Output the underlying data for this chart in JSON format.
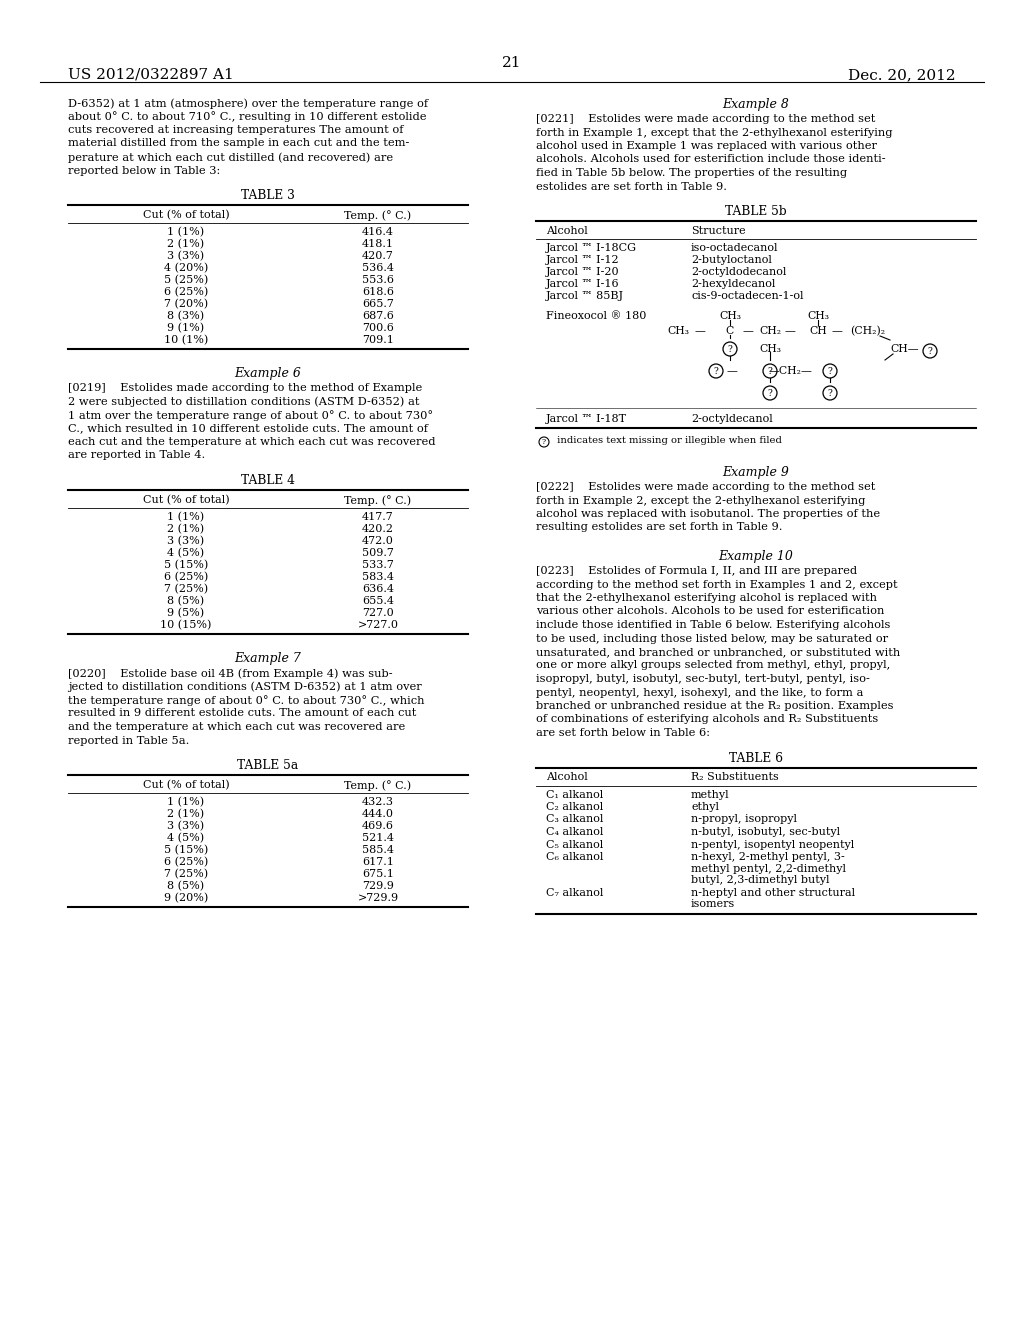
{
  "bg_color": "#ffffff",
  "header_left": "US 2012/0322897 A1",
  "header_right": "Dec. 20, 2012",
  "page_number": "21",
  "left_col": {
    "intro_text": "D-6352) at 1 atm (atmosphere) over the temperature range of\nabout 0° C. to about 710° C., resulting in 10 different estolide\ncuts recovered at increasing temperatures The amount of\nmaterial distilled from the sample in each cut and the tem-\nperature at which each cut distilled (and recovered) are\nreported below in Table 3:",
    "table3_title": "TABLE 3",
    "table3_col1": "Cut (% of total)",
    "table3_col2": "Temp. (° C.)",
    "table3_rows": [
      [
        "1 (1%)",
        "416.4"
      ],
      [
        "2 (1%)",
        "418.1"
      ],
      [
        "3 (3%)",
        "420.7"
      ],
      [
        "4 (20%)",
        "536.4"
      ],
      [
        "5 (25%)",
        "553.6"
      ],
      [
        "6 (25%)",
        "618.6"
      ],
      [
        "7 (20%)",
        "665.7"
      ],
      [
        "8 (3%)",
        "687.6"
      ],
      [
        "9 (1%)",
        "700.6"
      ],
      [
        "10 (1%)",
        "709.1"
      ]
    ],
    "ex6_title": "Example 6",
    "ex6_text": "[0219]    Estolides made according to the method of Example\n2 were subjected to distillation conditions (ASTM D-6352) at\n1 atm over the temperature range of about 0° C. to about 730°\nC., which resulted in 10 different estolide cuts. The amount of\neach cut and the temperature at which each cut was recovered\nare reported in Table 4.",
    "table4_title": "TABLE 4",
    "table4_col1": "Cut (% of total)",
    "table4_col2": "Temp. (° C.)",
    "table4_rows": [
      [
        "1 (1%)",
        "417.7"
      ],
      [
        "2 (1%)",
        "420.2"
      ],
      [
        "3 (3%)",
        "472.0"
      ],
      [
        "4 (5%)",
        "509.7"
      ],
      [
        "5 (15%)",
        "533.7"
      ],
      [
        "6 (25%)",
        "583.4"
      ],
      [
        "7 (25%)",
        "636.4"
      ],
      [
        "8 (5%)",
        "655.4"
      ],
      [
        "9 (5%)",
        "727.0"
      ],
      [
        "10 (15%)",
        ">727.0"
      ]
    ],
    "ex7_title": "Example 7",
    "ex7_text": "[0220]    Estolide base oil 4B (from Example 4) was sub-\njected to distillation conditions (ASTM D-6352) at 1 atm over\nthe temperature range of about 0° C. to about 730° C., which\nresulted in 9 different estolide cuts. The amount of each cut\nand the temperature at which each cut was recovered are\nreported in Table 5a.",
    "table5a_title": "TABLE 5a",
    "table5a_col1": "Cut (% of total)",
    "table5a_col2": "Temp. (° C.)",
    "table5a_rows": [
      [
        "1 (1%)",
        "432.3"
      ],
      [
        "2 (1%)",
        "444.0"
      ],
      [
        "3 (3%)",
        "469.6"
      ],
      [
        "4 (5%)",
        "521.4"
      ],
      [
        "5 (15%)",
        "585.4"
      ],
      [
        "6 (25%)",
        "617.1"
      ],
      [
        "7 (25%)",
        "675.1"
      ],
      [
        "8 (5%)",
        "729.9"
      ],
      [
        "9 (20%)",
        ">729.9"
      ]
    ]
  },
  "right_col": {
    "ex8_title": "Example 8",
    "ex8_text": "[0221]    Estolides were made according to the method set\nforth in Example 1, except that the 2-ethylhexanol esterifying\nalcohol used in Example 1 was replaced with various other\nalcohols. Alcohols used for esterifiction include those identi-\nfied in Table 5b below. The properties of the resulting\nestolides are set forth in Table 9.",
    "table5b_title": "TABLE 5b",
    "table5b_col1": "Alcohol",
    "table5b_col2": "Structure",
    "table5b_rows": [
      [
        "Jarcol ™ I-18CG",
        "iso-octadecanol"
      ],
      [
        "Jarcol ™ I-12",
        "2-butyloctanol"
      ],
      [
        "Jarcol ™ I-20",
        "2-octyldodecanol"
      ],
      [
        "Jarcol ™ I-16",
        "2-hexyldecanol"
      ],
      [
        "Jarcol ™ 85BJ",
        "cis-9-octadecen-1-ol"
      ]
    ],
    "fineoxocol_label": "Fineoxocol ® 180",
    "jarcol_i18t_label": "Jarcol ™ I-18T",
    "jarcol_i18t_struct": "2-octyldecanol",
    "footnote": "ⓘ indicates text missing or illegible when filed",
    "ex9_title": "Example 9",
    "ex9_text": "[0222]    Estolides were made according to the method set\nforth in Example 2, except the 2-ethylhexanol esterifying\nalcohol was replaced with isobutanol. The properties of the\nresulting estolides are set forth in Table 9.",
    "ex10_title": "Example 10",
    "ex10_text": "[0223]    Estolides of Formula I, II, and III are prepared\naccording to the method set forth in Examples 1 and 2, except\nthat the 2-ethylhexanol esterifying alcohol is replaced with\nvarious other alcohols. Alcohols to be used for esterification\ninclude those identified in Table 6 below. Esterifying alcohols\nto be used, including those listed below, may be saturated or\nunsaturated, and branched or unbranched, or substituted with\none or more alkyl groups selected from methyl, ethyl, propyl,\nisopropyl, butyl, isobutyl, sec-butyl, tert-butyl, pentyl, iso-\npentyl, neopentyl, hexyl, isohexyl, and the like, to form a\nbranched or unbranched residue at the R₂ position. Examples\nof combinations of esterifying alcohols and R₂ Substituents\nare set forth below in Table 6:",
    "table6_title": "TABLE 6",
    "table6_col1": "Alcohol",
    "table6_col2": "R₂ Substituents",
    "table6_rows": [
      [
        "C₁ alkanol",
        "methyl"
      ],
      [
        "C₂ alkanol",
        "ethyl"
      ],
      [
        "C₃ alkanol",
        "n-propyl, isopropyl"
      ],
      [
        "C₄ alkanol",
        "n-butyl, isobutyl, sec-butyl"
      ],
      [
        "C₅ alkanol",
        "n-pentyl, isopentyl neopentyl"
      ],
      [
        "C₆ alkanol",
        "n-hexyl, 2-methyl pentyl, 3-\nmethyl pentyl, 2,2-dimethyl\nbutyl, 2,3-dimethyl butyl"
      ],
      [
        "C₇ alkanol",
        "n-heptyl and other structural\nisomers"
      ]
    ]
  }
}
